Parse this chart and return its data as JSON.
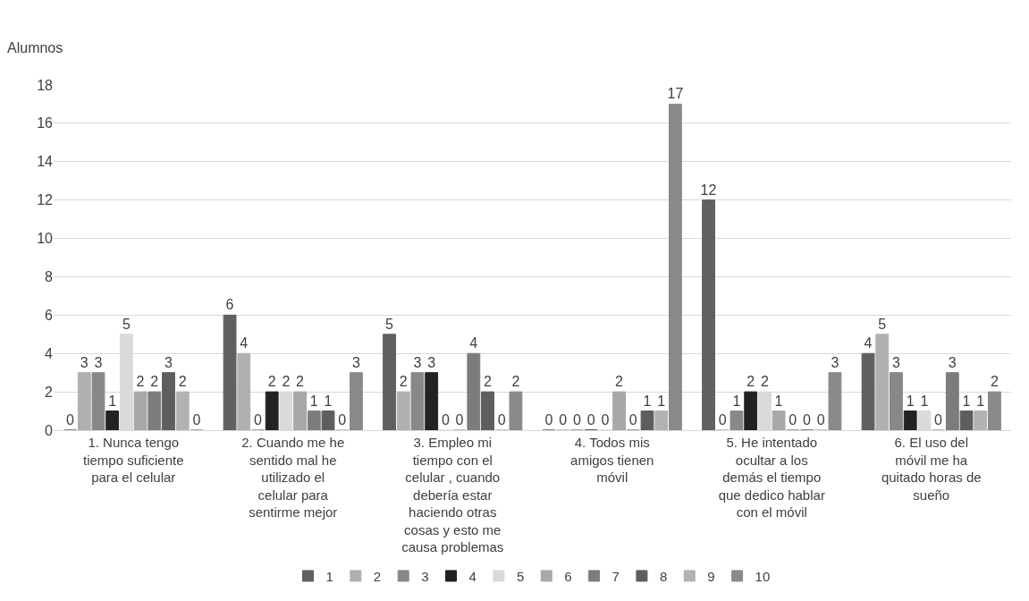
{
  "chart_data": {
    "type": "bar",
    "ylabel": "Alumnos",
    "categories": [
      "1. Nunca tengo tiempo suficiente para el celular",
      "2. Cuando me he sentido mal he utilizado el celular para sentirme mejor",
      "3. Empleo mi tiempo con el celular , cuando debería estar haciendo otras cosas y esto me causa problemas",
      "4. Todos mis amigos tienen móvil",
      "5. He intentado ocultar a los demás el tiempo que dedico hablar con el móvil",
      "6. El uso del móvil me ha quitado horas de sueño"
    ],
    "series": [
      {
        "name": "1",
        "color": "#606060",
        "values": [
          0,
          6,
          5,
          0,
          12,
          4
        ]
      },
      {
        "name": "2",
        "color": "#b0b0b0",
        "values": [
          3,
          4,
          2,
          0,
          0,
          5
        ]
      },
      {
        "name": "3",
        "color": "#888888",
        "values": [
          3,
          0,
          3,
          0,
          1,
          3
        ]
      },
      {
        "name": "4",
        "color": "#222222",
        "values": [
          1,
          2,
          3,
          0,
          2,
          1
        ]
      },
      {
        "name": "5",
        "color": "#dadada",
        "values": [
          5,
          2,
          0,
          0,
          2,
          1
        ]
      },
      {
        "name": "6",
        "color": "#a8a8a8",
        "values": [
          2,
          2,
          0,
          2,
          1,
          0
        ]
      },
      {
        "name": "7",
        "color": "#7c7c7c",
        "values": [
          2,
          1,
          4,
          0,
          0,
          3
        ]
      },
      {
        "name": "8",
        "color": "#5e5e5e",
        "values": [
          3,
          1,
          2,
          1,
          0,
          1
        ]
      },
      {
        "name": "9",
        "color": "#b2b2b2",
        "values": [
          2,
          0,
          0,
          1,
          0,
          1
        ]
      },
      {
        "name": "10",
        "color": "#8a8a8a",
        "values": [
          0,
          3,
          2,
          17,
          3,
          2
        ]
      }
    ],
    "ylim": [
      0,
      18
    ],
    "yticks": [
      0,
      2,
      4,
      6,
      8,
      10,
      12,
      14,
      16,
      18
    ],
    "grid": "y",
    "legend": "bottom",
    "data_labels": true
  }
}
